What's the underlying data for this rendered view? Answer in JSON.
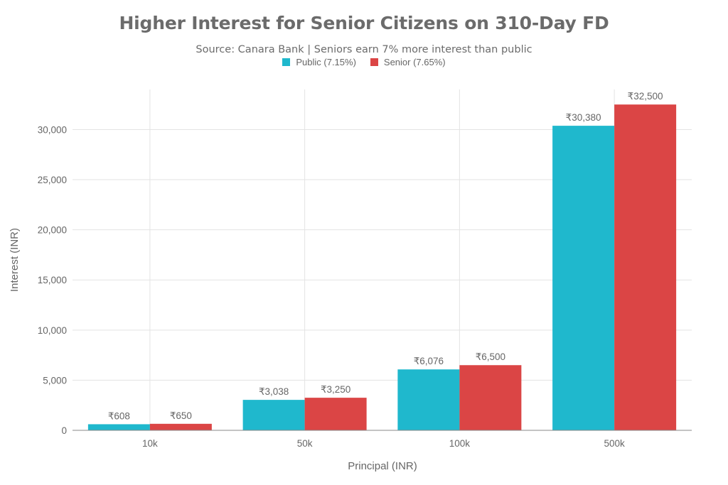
{
  "chart_data": {
    "type": "bar",
    "title": "Higher Interest for Senior Citizens on 310-Day FD",
    "subtitle": "Source: Canara Bank | Seniors earn 7% more interest than public",
    "xlabel": "Principal (INR)",
    "ylabel": "Interest (INR)",
    "categories": [
      "10k",
      "50k",
      "100k",
      "500k"
    ],
    "ylim": [
      0,
      34000
    ],
    "yticks": [
      0,
      5000,
      10000,
      15000,
      20000,
      25000,
      30000
    ],
    "ytick_labels": [
      "0",
      "5,000",
      "10,000",
      "15,000",
      "20,000",
      "25,000",
      "30,000"
    ],
    "grid": true,
    "legend_position": "top-center",
    "series": [
      {
        "name": "Public (7.15%)",
        "color": "#1fb8cd",
        "values": [
          608,
          3038,
          6076,
          30380
        ],
        "labels": [
          "₹608",
          "₹3,038",
          "₹6,076",
          "₹30,380"
        ]
      },
      {
        "name": "Senior (7.65%)",
        "color": "#db4545",
        "values": [
          650,
          3250,
          6500,
          32500
        ],
        "labels": [
          "₹650",
          "₹3,250",
          "₹6,500",
          "₹32,500"
        ]
      }
    ]
  }
}
